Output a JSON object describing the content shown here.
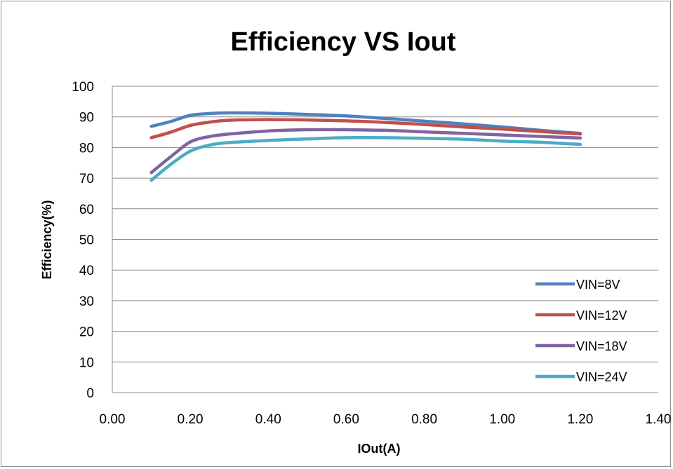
{
  "chart_data": {
    "type": "line",
    "title": "Efficiency  VS  Iout",
    "xlabel": "IOut(A)",
    "ylabel": "Efficiency(%)",
    "xlim": [
      0,
      1.4
    ],
    "ylim": [
      0,
      100
    ],
    "xticks": [
      "0.00",
      "0.20",
      "0.40",
      "0.60",
      "0.80",
      "1.00",
      "1.20",
      "1.40"
    ],
    "yticks": [
      "0",
      "10",
      "20",
      "30",
      "40",
      "50",
      "60",
      "70",
      "80",
      "90",
      "100"
    ],
    "grid": "horizontal",
    "legend_position": "bottom-right",
    "series": [
      {
        "name": "VIN=8V",
        "color": "#4f81bd",
        "x": [
          0.1,
          0.15,
          0.2,
          0.25,
          0.3,
          0.4,
          0.5,
          0.6,
          0.7,
          0.8,
          0.9,
          1.0,
          1.1,
          1.2
        ],
        "y": [
          86.9,
          88.5,
          90.5,
          91.1,
          91.3,
          91.2,
          90.8,
          90.3,
          89.5,
          88.6,
          87.7,
          86.7,
          85.6,
          84.6
        ]
      },
      {
        "name": "VIN=12V",
        "color": "#c0504d",
        "x": [
          0.1,
          0.15,
          0.2,
          0.25,
          0.3,
          0.4,
          0.5,
          0.6,
          0.7,
          0.8,
          0.9,
          1.0,
          1.1,
          1.2
        ],
        "y": [
          83.2,
          85.0,
          87.2,
          88.3,
          88.9,
          89.1,
          89.0,
          88.7,
          88.2,
          87.5,
          86.7,
          86.0,
          85.2,
          84.4
        ]
      },
      {
        "name": "VIN=18V",
        "color": "#8064a2",
        "x": [
          0.1,
          0.15,
          0.2,
          0.25,
          0.3,
          0.4,
          0.5,
          0.6,
          0.7,
          0.8,
          0.9,
          1.0,
          1.1,
          1.2
        ],
        "y": [
          71.8,
          77.0,
          81.8,
          83.6,
          84.4,
          85.4,
          85.8,
          85.8,
          85.6,
          85.1,
          84.6,
          84.1,
          83.6,
          83.1
        ]
      },
      {
        "name": "VIN=24V",
        "color": "#4bacc6",
        "x": [
          0.1,
          0.15,
          0.2,
          0.25,
          0.3,
          0.4,
          0.5,
          0.6,
          0.7,
          0.8,
          0.9,
          1.0,
          1.1,
          1.2
        ],
        "y": [
          69.3,
          74.5,
          78.8,
          80.8,
          81.6,
          82.3,
          82.8,
          83.2,
          83.2,
          83.0,
          82.7,
          82.1,
          81.7,
          81.0
        ]
      }
    ]
  }
}
